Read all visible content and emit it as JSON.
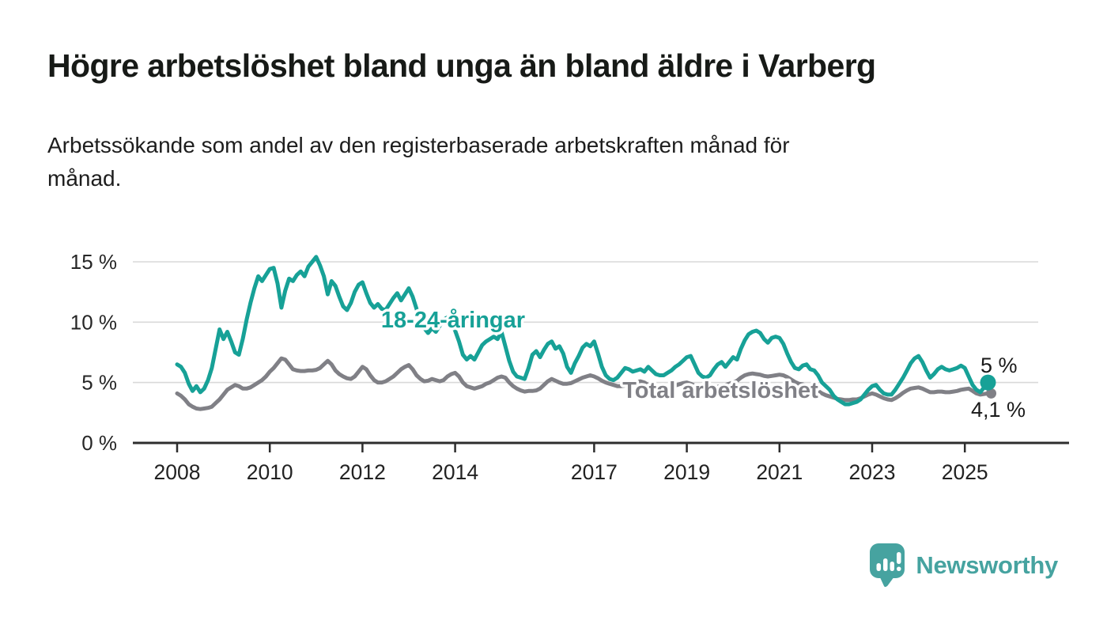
{
  "page": {
    "title": "Högre arbetslöshet bland unga än bland äldre i Varberg",
    "subtitle": "Arbetssökande som andel av den registerbaserade arbetskraften månad för\nmånad.",
    "background": "#ffffff"
  },
  "branding": {
    "logo_text": "Newsworthy",
    "logo_color": "#46a3a0",
    "logo_icon": "bar-chart-speech-bubble-icon"
  },
  "chart_data": {
    "type": "line",
    "title": "Högre arbetslöshet bland unga än bland äldre i Varberg",
    "xlabel": "",
    "ylabel": "Arbetssökande som andel av den registerbaserade arbetskraften",
    "unit": "%",
    "grid": "horizontal",
    "x_start_year": 2008,
    "x_step_months": 1,
    "x_end_year": 2025.5,
    "ylim": [
      0,
      16
    ],
    "y_ticks": [
      {
        "value": 0,
        "label": "0 %"
      },
      {
        "value": 5,
        "label": "5 %"
      },
      {
        "value": 10,
        "label": "10 %"
      },
      {
        "value": 15,
        "label": "15 %"
      }
    ],
    "x_ticks": [
      {
        "value": 2008,
        "label": "2008"
      },
      {
        "value": 2010,
        "label": "2010"
      },
      {
        "value": 2012,
        "label": "2012"
      },
      {
        "value": 2014,
        "label": "2014"
      },
      {
        "value": 2017,
        "label": "2017"
      },
      {
        "value": 2019,
        "label": "2019"
      },
      {
        "value": 2021,
        "label": "2021"
      },
      {
        "value": 2023,
        "label": "2023"
      },
      {
        "value": 2025,
        "label": "2025"
      }
    ],
    "series": [
      {
        "name": "18-24-åringar",
        "inline_label": "18-24-åringar",
        "end_label": "5 %",
        "end_value": 5.0,
        "color": "#17a197",
        "end_dot": true,
        "values": [
          6.5,
          6.3,
          5.8,
          4.9,
          4.3,
          4.7,
          4.2,
          4.5,
          5.2,
          6.2,
          7.8,
          9.4,
          8.6,
          9.2,
          8.4,
          7.5,
          7.3,
          8.6,
          10.2,
          11.6,
          12.8,
          13.8,
          13.4,
          13.9,
          14.4,
          14.5,
          13.2,
          11.2,
          12.6,
          13.6,
          13.4,
          13.9,
          14.2,
          13.8,
          14.6,
          15.0,
          15.4,
          14.7,
          13.8,
          12.3,
          13.4,
          13.0,
          12.1,
          11.3,
          11.0,
          11.6,
          12.5,
          13.1,
          13.3,
          12.4,
          11.6,
          11.2,
          11.5,
          11.1,
          11.0,
          11.5,
          12.0,
          12.4,
          11.8,
          12.3,
          12.8,
          12.1,
          11.1,
          10.1,
          9.5,
          9.1,
          9.5,
          9.2,
          9.7,
          10.2,
          10.4,
          9.9,
          9.3,
          8.4,
          7.3,
          6.9,
          7.2,
          6.9,
          7.5,
          8.1,
          8.4,
          8.6,
          8.8,
          8.6,
          9.2,
          8.0,
          6.8,
          5.9,
          5.5,
          5.4,
          5.3,
          6.2,
          7.3,
          7.6,
          7.1,
          7.7,
          8.2,
          8.4,
          7.8,
          8.0,
          7.4,
          6.3,
          5.8,
          6.6,
          7.2,
          7.9,
          8.2,
          8.0,
          8.4,
          7.4,
          6.3,
          5.6,
          5.3,
          5.2,
          5.4,
          5.8,
          6.2,
          6.1,
          5.9,
          6.0,
          6.1,
          5.9,
          6.3,
          6.0,
          5.7,
          5.6,
          5.6,
          5.8,
          6.0,
          6.3,
          6.5,
          6.8,
          7.1,
          7.2,
          6.5,
          5.8,
          5.5,
          5.4,
          5.6,
          6.1,
          6.5,
          6.7,
          6.3,
          6.7,
          7.1,
          6.9,
          7.8,
          8.5,
          9.0,
          9.2,
          9.3,
          9.1,
          8.6,
          8.3,
          8.7,
          8.8,
          8.7,
          8.2,
          7.4,
          6.7,
          6.2,
          6.1,
          6.4,
          6.5,
          6.1,
          6.0,
          5.6,
          5.0,
          4.7,
          4.4,
          3.9,
          3.6,
          3.4,
          3.2,
          3.2,
          3.3,
          3.4,
          3.6,
          4.0,
          4.4,
          4.7,
          4.8,
          4.4,
          4.1,
          4.0,
          4.0,
          4.4,
          4.9,
          5.4,
          6.0,
          6.6,
          7.0,
          7.2,
          6.7,
          6.0,
          5.4,
          5.7,
          6.1,
          6.3,
          6.1,
          6.0,
          6.1,
          6.2,
          6.4,
          6.2,
          5.5,
          4.8,
          4.4,
          4.2,
          4.6,
          5.0
        ]
      },
      {
        "name": "Total arbetslöshet",
        "inline_label": "Total arbetslöshet",
        "end_label": "4,1 %",
        "end_value": 4.1,
        "color": "#808086",
        "end_dot": true,
        "values": [
          4.1,
          3.9,
          3.6,
          3.2,
          3.0,
          2.85,
          2.8,
          2.85,
          2.9,
          3.0,
          3.3,
          3.6,
          4.0,
          4.4,
          4.6,
          4.8,
          4.7,
          4.5,
          4.5,
          4.6,
          4.8,
          5.0,
          5.2,
          5.5,
          5.9,
          6.2,
          6.6,
          7.0,
          6.9,
          6.5,
          6.1,
          6.0,
          5.95,
          5.95,
          6.0,
          6.0,
          6.05,
          6.2,
          6.5,
          6.8,
          6.5,
          6.0,
          5.7,
          5.5,
          5.35,
          5.3,
          5.5,
          5.9,
          6.3,
          6.1,
          5.6,
          5.2,
          5.0,
          5.0,
          5.1,
          5.3,
          5.5,
          5.8,
          6.1,
          6.3,
          6.45,
          6.1,
          5.6,
          5.3,
          5.1,
          5.15,
          5.3,
          5.2,
          5.1,
          5.2,
          5.5,
          5.7,
          5.8,
          5.5,
          5.0,
          4.7,
          4.6,
          4.5,
          4.6,
          4.7,
          4.9,
          5.0,
          5.2,
          5.4,
          5.5,
          5.4,
          5.0,
          4.7,
          4.5,
          4.35,
          4.25,
          4.3,
          4.3,
          4.35,
          4.5,
          4.8,
          5.1,
          5.3,
          5.15,
          5.0,
          4.9,
          4.9,
          4.95,
          5.1,
          5.25,
          5.4,
          5.5,
          5.6,
          5.5,
          5.35,
          5.15,
          5.0,
          4.9,
          4.8,
          4.7,
          4.7,
          4.75,
          4.85,
          4.95,
          5.05,
          5.1,
          5.0,
          4.8,
          4.65,
          4.55,
          4.5,
          4.5,
          4.55,
          4.65,
          4.75,
          4.85,
          4.95,
          5.0,
          4.9,
          4.75,
          4.6,
          4.55,
          4.5,
          4.5,
          4.55,
          4.65,
          4.7,
          4.8,
          4.9,
          5.0,
          5.15,
          5.4,
          5.6,
          5.7,
          5.75,
          5.7,
          5.65,
          5.55,
          5.5,
          5.55,
          5.6,
          5.65,
          5.6,
          5.45,
          5.25,
          5.05,
          4.9,
          4.85,
          4.75,
          4.6,
          4.45,
          4.3,
          4.1,
          3.95,
          3.85,
          3.75,
          3.65,
          3.6,
          3.55,
          3.55,
          3.6,
          3.6,
          3.7,
          3.85,
          4.0,
          4.1,
          4.0,
          3.85,
          3.7,
          3.6,
          3.55,
          3.7,
          3.9,
          4.15,
          4.35,
          4.5,
          4.55,
          4.6,
          4.5,
          4.35,
          4.2,
          4.2,
          4.25,
          4.25,
          4.2,
          4.2,
          4.25,
          4.3,
          4.4,
          4.45,
          4.5,
          4.3,
          4.1,
          4.0,
          4.05,
          4.1
        ]
      }
    ]
  }
}
